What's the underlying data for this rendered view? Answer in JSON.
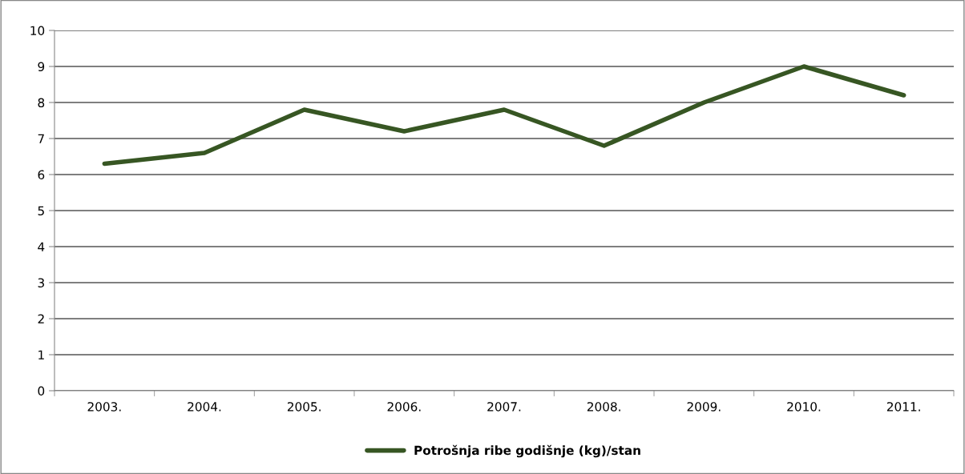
{
  "chart_data": {
    "type": "line",
    "categories": [
      "2003.",
      "2004.",
      "2005.",
      "2006.",
      "2007.",
      "2008.",
      "2009.",
      "2010.",
      "2011."
    ],
    "series": [
      {
        "name": "Potrošnja ribe godišnje (kg)/stan",
        "color": "#375623",
        "values": [
          6.3,
          6.6,
          7.8,
          7.2,
          7.8,
          6.8,
          8.0,
          9.0,
          8.2
        ]
      }
    ],
    "ylim": [
      0,
      10
    ],
    "yticks": [
      0,
      1,
      2,
      3,
      4,
      5,
      6,
      7,
      8,
      9,
      10
    ],
    "grid": "y",
    "legend": "bottom",
    "marker": "none",
    "line_style": "solid"
  }
}
